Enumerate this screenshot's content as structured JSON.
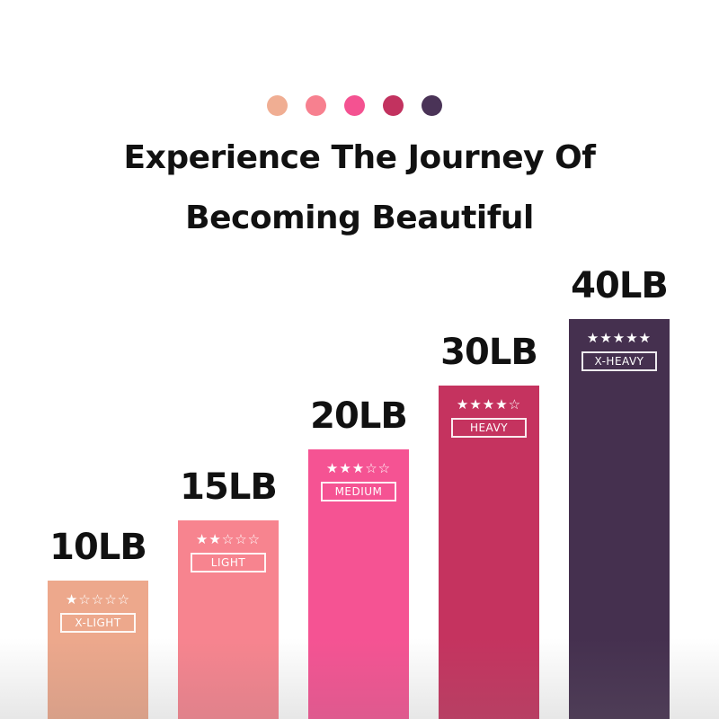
{
  "header": {
    "dot_colors": [
      "#F0AE93",
      "#F7808F",
      "#F45291",
      "#C2325F",
      "#4A3357"
    ],
    "title_line1": "Experience The Journey Of",
    "title_line2": "Becoming Beautiful"
  },
  "chart_data": {
    "type": "bar",
    "categories": [
      "X-LIGHT",
      "LIGHT",
      "MEDIUM",
      "HEAVY",
      "X-HEAVY"
    ],
    "values": [
      10,
      15,
      20,
      30,
      40
    ],
    "value_labels": [
      "10LB",
      "15LB",
      "20LB",
      "30LB",
      "40LB"
    ],
    "star_ratings": [
      1,
      2,
      3,
      4,
      5
    ],
    "star_max": 5,
    "colors": [
      "#EDA88C",
      "#F7848F",
      "#F55393",
      "#C5335F",
      "#45304F"
    ],
    "title": "",
    "xlabel": "",
    "ylabel": ""
  }
}
